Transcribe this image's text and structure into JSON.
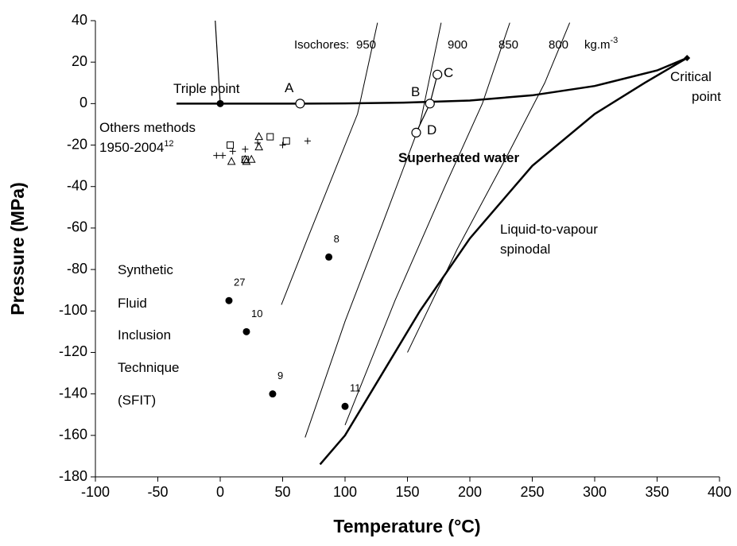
{
  "chart_data": {
    "type": "scatter",
    "xlabel": "Temperature (°C)",
    "ylabel": "Pressure (MPa)",
    "xlim": [
      -100,
      400
    ],
    "xticks": [
      -100,
      -50,
      0,
      50,
      100,
      150,
      200,
      250,
      300,
      350,
      400
    ],
    "ylim": [
      -180,
      40
    ],
    "yticks": [
      -180,
      -160,
      -140,
      -120,
      -100,
      -80,
      -60,
      -40,
      -20,
      0,
      20,
      40
    ],
    "grid": false,
    "series": [
      {
        "marker": "none",
        "line": true,
        "width": 2.5,
        "color": "#000000",
        "x": [
          -35,
          0,
          65,
          100,
          150,
          200,
          250,
          300,
          350,
          374
        ],
        "values": [
          0,
          0,
          0,
          0.1,
          0.5,
          1.5,
          4,
          8.5,
          16,
          22
        ]
      },
      {
        "marker": "none",
        "line": true,
        "width": 2.5,
        "color": "#000000",
        "x": [
          80,
          100,
          130,
          160,
          200,
          250,
          300,
          340,
          374
        ],
        "values": [
          -174,
          -160,
          -130,
          -100,
          -65,
          -30,
          -5,
          10,
          22
        ]
      },
      {
        "marker": "none",
        "line": true,
        "width": 1.2,
        "color": "#000000",
        "x": [
          0,
          -4
        ],
        "values": [
          0,
          40
        ]
      },
      {
        "marker": "none",
        "line": true,
        "width": 1,
        "color": "#000000",
        "x": [
          49,
          70,
          90,
          110,
          126
        ],
        "values": [
          -97,
          -65,
          -35,
          -5,
          39
        ]
      },
      {
        "marker": "none",
        "line": true,
        "width": 1,
        "color": "#000000",
        "x": [
          68,
          100,
          130,
          160,
          177
        ],
        "values": [
          -161,
          -105,
          -58,
          -10,
          39
        ]
      },
      {
        "marker": "none",
        "line": true,
        "width": 1,
        "color": "#000000",
        "x": [
          100,
          140,
          180,
          210,
          232
        ],
        "values": [
          -155,
          -95,
          -40,
          0,
          39
        ]
      },
      {
        "marker": "none",
        "line": true,
        "width": 1,
        "color": "#000000",
        "x": [
          150,
          190,
          230,
          260,
          280
        ],
        "values": [
          -120,
          -70,
          -25,
          10,
          39
        ]
      },
      {
        "marker": "none",
        "line": true,
        "width": 1.2,
        "color": "#000000",
        "x": [
          157,
          168,
          174
        ],
        "values": [
          -14,
          0,
          14
        ]
      },
      {
        "marker": "filled-circle",
        "color": "#000000",
        "x": [
          0
        ],
        "values": [
          0
        ]
      },
      {
        "marker": "open-circle",
        "color": "#000000",
        "x": [
          64,
          168,
          174,
          157
        ],
        "values": [
          0,
          0,
          14,
          -14
        ]
      },
      {
        "marker": "diamond",
        "color": "#000000",
        "x": [
          374
        ],
        "values": [
          22
        ]
      },
      {
        "marker": "filled-circle",
        "color": "#000000",
        "x": [
          87,
          7,
          21,
          42,
          100
        ],
        "values": [
          -74,
          -95,
          -110,
          -140,
          -146
        ],
        "labels": [
          "8",
          "27",
          "10",
          "9",
          "11"
        ]
      },
      {
        "marker": "square",
        "color": "#000000",
        "x": [
          8,
          20,
          40,
          53
        ],
        "values": [
          -20,
          -27,
          -16,
          -18
        ]
      },
      {
        "marker": "triangle",
        "color": "#000000",
        "x": [
          9,
          21,
          25,
          31,
          31,
          20
        ],
        "values": [
          -28,
          -28,
          -27,
          -16,
          -21,
          -27
        ]
      },
      {
        "marker": "plus",
        "color": "#000000",
        "x": [
          -3,
          2,
          10,
          20,
          30,
          50,
          70
        ],
        "values": [
          -25,
          -25,
          -23,
          -22,
          -19,
          -20,
          -18
        ]
      }
    ],
    "annotations": [
      {
        "text": "Triple point"
      },
      {
        "text": "A"
      },
      {
        "text": "B"
      },
      {
        "text": "C"
      },
      {
        "text": "D"
      },
      {
        "text": "Critical"
      },
      {
        "text": "point"
      },
      {
        "text": "Isochores:"
      },
      {
        "text": "950"
      },
      {
        "text": "900"
      },
      {
        "text": "850"
      },
      {
        "text": "800"
      },
      {
        "text": "kg.m",
        "sup": "-3"
      },
      {
        "text": "Others methods"
      },
      {
        "text": "1950-2004",
        "sup": "12"
      },
      {
        "text": "Superheated water",
        "bold": true
      },
      {
        "text": "Liquid-to-vapour"
      },
      {
        "text": "spinodal"
      },
      {
        "text": "Synthetic"
      },
      {
        "text": "Fluid"
      },
      {
        "text": "Inclusion"
      },
      {
        "text": "Technique"
      },
      {
        "text": "(SFIT)"
      }
    ]
  }
}
